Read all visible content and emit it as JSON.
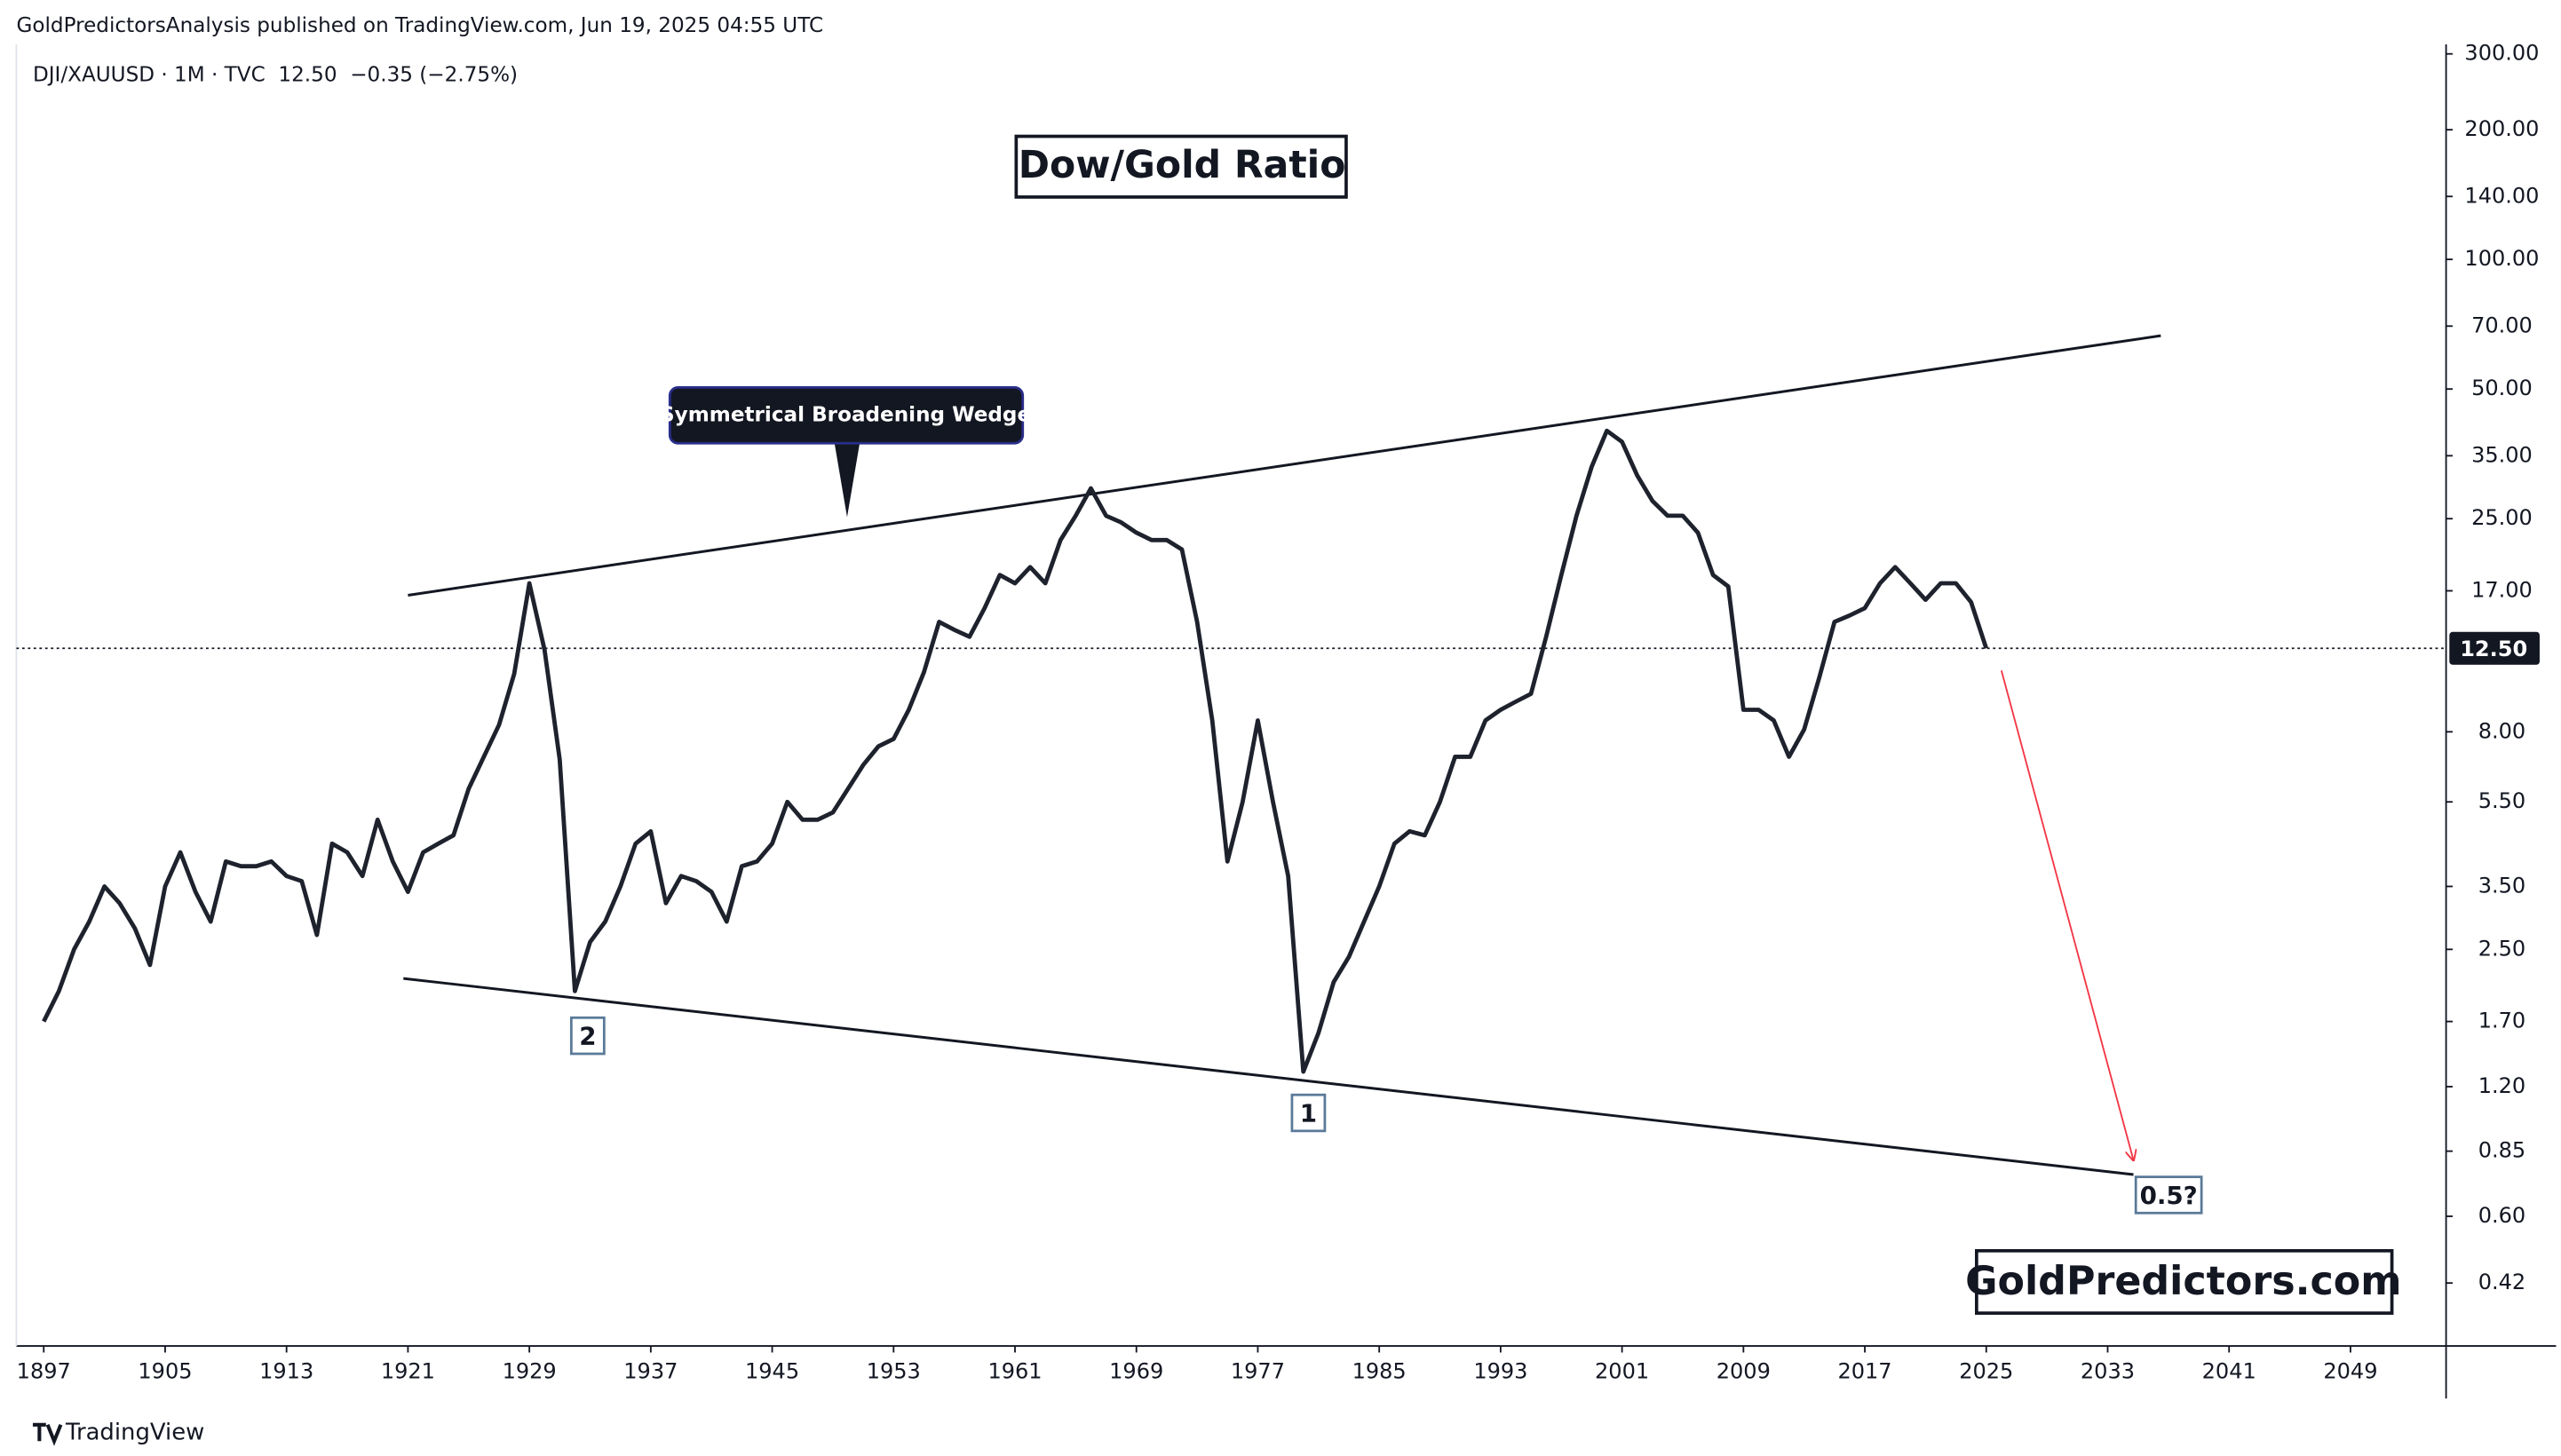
{
  "publisher": "GoldPredictorsAnalysis published on TradingView.com, Jun 19, 2025 04:55 UTC",
  "footer": "TradingView",
  "chart_data": {
    "type": "line",
    "title": "Dow/Gold Ratio",
    "subtitle": "DJI/XAUUSD · 1M · TVC  12.50  −0.35 (−2.75%)",
    "log_scale": true,
    "grid": false,
    "x": [
      1897,
      1898,
      1899,
      1900,
      1901,
      1902,
      1903,
      1904,
      1905,
      1906,
      1907,
      1908,
      1909,
      1910,
      1911,
      1912,
      1913,
      1914,
      1915,
      1916,
      1917,
      1918,
      1919,
      1920,
      1921,
      1922,
      1923,
      1924,
      1925,
      1926,
      1927,
      1928,
      1929,
      1930,
      1931,
      1932,
      1933,
      1934,
      1935,
      1936,
      1937,
      1938,
      1939,
      1940,
      1941,
      1942,
      1943,
      1944,
      1945,
      1946,
      1947,
      1948,
      1949,
      1950,
      1951,
      1952,
      1953,
      1954,
      1955,
      1956,
      1957,
      1958,
      1959,
      1960,
      1961,
      1962,
      1963,
      1964,
      1965,
      1966,
      1967,
      1968,
      1969,
      1970,
      1971,
      1972,
      1973,
      1974,
      1975,
      1976,
      1977,
      1978,
      1979,
      1980,
      1981,
      1982,
      1983,
      1984,
      1985,
      1986,
      1987,
      1988,
      1989,
      1990,
      1991,
      1992,
      1993,
      1994,
      1995,
      1996,
      1997,
      1998,
      1999,
      2000,
      2001,
      2002,
      2003,
      2004,
      2005,
      2006,
      2007,
      2008,
      2009,
      2010,
      2011,
      2012,
      2013,
      2014,
      2015,
      2016,
      2017,
      2018,
      2019,
      2020,
      2021,
      2022,
      2023,
      2024,
      2025
    ],
    "series": [
      {
        "name": "DJI/XAUUSD",
        "color": "#1e222d",
        "values": [
          1.7,
          2.0,
          2.5,
          2.9,
          3.5,
          3.2,
          2.8,
          2.3,
          3.5,
          4.2,
          3.4,
          2.9,
          4.0,
          3.9,
          3.9,
          4.0,
          3.7,
          3.6,
          2.7,
          4.4,
          4.2,
          3.7,
          5.0,
          4.0,
          3.4,
          4.2,
          4.4,
          4.6,
          5.9,
          7.0,
          8.3,
          10.9,
          17.7,
          12.4,
          6.9,
          2.0,
          2.6,
          2.9,
          3.5,
          4.4,
          4.7,
          3.2,
          3.7,
          3.6,
          3.4,
          2.9,
          3.9,
          4.0,
          4.4,
          5.5,
          5.0,
          5.0,
          5.2,
          5.9,
          6.7,
          7.4,
          7.7,
          9.0,
          11.0,
          14.4,
          13.8,
          13.3,
          15.5,
          18.5,
          17.7,
          19.3,
          17.7,
          22.3,
          25.4,
          29.4,
          25.4,
          24.5,
          23.2,
          22.3,
          22.3,
          21.2,
          14.4,
          8.5,
          4.0,
          5.5,
          8.5,
          5.5,
          3.7,
          1.3,
          1.6,
          2.1,
          2.4,
          2.9,
          3.5,
          4.4,
          4.7,
          4.6,
          5.5,
          7.0,
          7.0,
          8.5,
          9.0,
          9.4,
          9.8,
          13.3,
          18.5,
          25.4,
          33.0,
          40.0,
          37.7,
          31.5,
          27.5,
          25.4,
          25.4,
          23.2,
          18.5,
          17.4,
          9.0,
          9.0,
          8.5,
          7.0,
          8.1,
          10.7,
          14.4,
          14.9,
          15.5,
          17.7,
          19.3,
          17.7,
          16.2,
          17.7,
          17.7,
          16.0,
          12.5
        ]
      }
    ],
    "xlim": [
      1895.2,
      2055.3
    ],
    "xticks": [
      1897,
      1905,
      1913,
      1921,
      1929,
      1937,
      1945,
      1953,
      1961,
      1969,
      1977,
      1985,
      1993,
      2001,
      2009,
      2017,
      2025,
      2033,
      2041,
      2049
    ],
    "ylim": [
      0.3,
      400
    ],
    "yticks": [
      {
        "value": 300,
        "label": "300.00"
      },
      {
        "value": 200,
        "label": "200.00"
      },
      {
        "value": 140,
        "label": "140.00"
      },
      {
        "value": 100,
        "label": "100.00"
      },
      {
        "value": 70,
        "label": "70.00"
      },
      {
        "value": 50,
        "label": "50.00"
      },
      {
        "value": 35,
        "label": "35.00"
      },
      {
        "value": 25,
        "label": "25.00"
      },
      {
        "value": 17,
        "label": "17.00"
      },
      {
        "value": 8,
        "label": "8.00"
      },
      {
        "value": 5.5,
        "label": "5.50"
      },
      {
        "value": 3.5,
        "label": "3.50"
      },
      {
        "value": 2.5,
        "label": "2.50"
      },
      {
        "value": 1.7,
        "label": "1.70"
      },
      {
        "value": 1.2,
        "label": "1.20"
      },
      {
        "value": 0.85,
        "label": "0.85"
      },
      {
        "value": 0.6,
        "label": "0.60"
      },
      {
        "value": 0.42,
        "label": "0.42"
      }
    ],
    "last_value": {
      "value": 12.5,
      "label": "12.50"
    },
    "trendlines": [
      {
        "x": [
          1921,
          2036.5
        ],
        "values": [
          16.6,
          66.5
        ],
        "color": "#131722"
      },
      {
        "x": [
          1920.7,
          2034.7
        ],
        "values": [
          2.14,
          0.75
        ],
        "color": "#131722"
      }
    ],
    "arrow": {
      "x": [
        2026,
        2034.7
      ],
      "values": [
        11.1,
        0.81
      ],
      "color": "#f23645"
    },
    "annotations": [
      "Symmetrical Broadening Wedge",
      "2",
      "1",
      "0.5?"
    ],
    "watermark": "GoldPredictors.com"
  }
}
